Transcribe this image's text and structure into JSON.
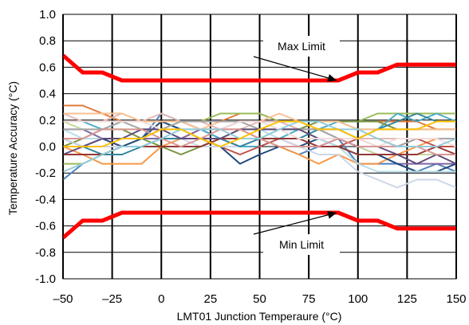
{
  "chart_data": {
    "type": "line",
    "title": "",
    "xlabel": "LMT01 Junction Temperaure (°C)",
    "ylabel": "Temperature Accuracy (°C)",
    "xlim": [
      -50,
      150
    ],
    "ylim": [
      -1.0,
      1.0
    ],
    "x_ticks": [
      -50,
      -25,
      0,
      25,
      50,
      75,
      100,
      125,
      150
    ],
    "x_tick_labels": [
      "–50",
      "–25",
      "0",
      "25",
      "50",
      "75",
      "100",
      "125",
      "150"
    ],
    "y_ticks": [
      1.0,
      0.8,
      0.6,
      0.4,
      0.2,
      0.0,
      -0.2,
      -0.4,
      -0.6,
      -0.8,
      -1.0
    ],
    "y_tick_labels": [
      "1.0",
      "0.8",
      "0.6",
      "0.4",
      "0.2",
      "0.0",
      "-0.2",
      "-0.4",
      "-0.6",
      "-0.8",
      "-1.0"
    ],
    "grid": true,
    "x": [
      -50,
      -40,
      -30,
      -20,
      -10,
      0,
      10,
      20,
      30,
      40,
      50,
      60,
      70,
      80,
      90,
      100,
      110,
      120,
      130,
      140,
      150
    ],
    "limits": [
      {
        "name": "Max Limit",
        "color": "#ff0000",
        "values": [
          0.69,
          0.56,
          0.56,
          0.5,
          0.5,
          0.5,
          0.5,
          0.5,
          0.5,
          0.5,
          0.5,
          0.5,
          0.5,
          0.5,
          0.5,
          0.56,
          0.56,
          0.62,
          0.62,
          0.62,
          0.62
        ]
      },
      {
        "name": "Min Limit",
        "color": "#ff0000",
        "values": [
          -0.69,
          -0.56,
          -0.56,
          -0.5,
          -0.5,
          -0.5,
          -0.5,
          -0.5,
          -0.5,
          -0.5,
          -0.5,
          -0.5,
          -0.5,
          -0.5,
          -0.5,
          -0.56,
          -0.56,
          -0.62,
          -0.62,
          -0.62,
          -0.62
        ]
      }
    ],
    "series": [
      {
        "color": "#e07b39",
        "values": [
          0.31,
          0.31,
          0.25,
          0.19,
          0.19,
          0.19,
          0.19,
          0.19,
          0.19,
          0.25,
          0.25,
          0.19,
          0.19,
          0.19,
          0.19,
          0.19,
          0.19,
          0.19,
          0.19,
          0.13,
          0.13
        ]
      },
      {
        "color": "#4f81bd",
        "values": [
          -0.25,
          -0.13,
          -0.06,
          0.0,
          0.06,
          0.25,
          0.19,
          0.13,
          0.06,
          0.0,
          0.06,
          0.0,
          -0.06,
          0.0,
          0.06,
          -0.13,
          -0.13,
          -0.13,
          -0.19,
          -0.13,
          -0.19
        ]
      },
      {
        "color": "#9bbb59",
        "values": [
          -0.13,
          -0.13,
          -0.06,
          0.0,
          0.06,
          0.13,
          0.19,
          0.19,
          0.25,
          0.25,
          0.25,
          0.19,
          0.19,
          0.19,
          0.19,
          0.19,
          0.25,
          0.25,
          0.25,
          0.25,
          0.25
        ]
      },
      {
        "color": "#f79646",
        "values": [
          0.0,
          -0.06,
          -0.13,
          -0.13,
          -0.13,
          0.0,
          0.06,
          0.13,
          0.13,
          0.13,
          0.06,
          0.0,
          -0.06,
          -0.13,
          -0.06,
          -0.13,
          -0.13,
          -0.06,
          0.0,
          0.06,
          0.06
        ]
      },
      {
        "color": "#8064a2",
        "values": [
          0.13,
          0.13,
          0.06,
          0.06,
          0.06,
          0.06,
          0.06,
          0.13,
          0.13,
          0.19,
          0.19,
          0.19,
          0.13,
          0.13,
          0.06,
          0.0,
          -0.06,
          -0.13,
          -0.13,
          -0.13,
          -0.13
        ]
      },
      {
        "color": "#4bacc6",
        "values": [
          0.19,
          0.19,
          0.13,
          0.19,
          0.19,
          0.19,
          0.13,
          0.13,
          0.06,
          0.0,
          0.0,
          0.06,
          0.13,
          0.13,
          0.19,
          0.13,
          0.13,
          0.25,
          0.19,
          0.25,
          0.19
        ]
      },
      {
        "color": "#c0504d",
        "values": [
          0.06,
          0.06,
          0.06,
          0.0,
          0.0,
          0.06,
          0.06,
          0.06,
          0.0,
          -0.06,
          0.0,
          0.06,
          0.0,
          0.0,
          0.0,
          0.06,
          0.06,
          0.0,
          0.06,
          0.0,
          0.0
        ]
      },
      {
        "color": "#e5b9b7",
        "values": [
          0.25,
          0.19,
          0.19,
          0.25,
          0.19,
          0.25,
          0.19,
          0.19,
          0.13,
          0.13,
          0.19,
          0.19,
          0.13,
          0.13,
          0.13,
          0.06,
          0.06,
          0.06,
          0.06,
          0.06,
          0.06
        ]
      },
      {
        "color": "#1f497d",
        "values": [
          0.06,
          0.0,
          0.06,
          0.0,
          0.06,
          0.19,
          0.13,
          0.06,
          0.0,
          -0.13,
          -0.06,
          0.0,
          0.0,
          0.06,
          0.0,
          -0.06,
          -0.06,
          -0.13,
          -0.19,
          -0.19,
          -0.13
        ]
      },
      {
        "color": "#77933c",
        "values": [
          0.0,
          0.06,
          0.13,
          0.13,
          0.06,
          0.0,
          -0.06,
          0.0,
          0.06,
          0.06,
          0.06,
          0.13,
          0.13,
          0.19,
          0.19,
          0.19,
          0.19,
          0.13,
          0.13,
          0.13,
          0.13
        ]
      },
      {
        "color": "#c4d79b",
        "values": [
          0.19,
          0.13,
          0.13,
          0.13,
          0.13,
          0.13,
          0.13,
          0.06,
          0.06,
          0.13,
          0.13,
          0.13,
          0.13,
          0.06,
          0.06,
          0.0,
          -0.06,
          -0.06,
          -0.06,
          -0.06,
          -0.13
        ]
      },
      {
        "color": "#b7dde8",
        "values": [
          0.13,
          0.06,
          0.06,
          0.06,
          0.06,
          0.13,
          0.06,
          0.06,
          0.06,
          0.13,
          0.13,
          0.06,
          0.06,
          0.06,
          0.0,
          -0.13,
          -0.19,
          -0.19,
          -0.19,
          -0.19,
          -0.19
        ]
      },
      {
        "color": "#ccd6e6",
        "values": [
          0.06,
          0.0,
          0.0,
          0.0,
          0.0,
          0.06,
          0.06,
          0.0,
          0.0,
          0.0,
          0.06,
          0.06,
          0.0,
          -0.06,
          -0.06,
          -0.19,
          -0.25,
          -0.31,
          -0.25,
          -0.25,
          -0.31
        ]
      },
      {
        "color": "#fac090",
        "values": [
          0.25,
          0.25,
          0.25,
          0.25,
          0.19,
          0.19,
          0.19,
          0.13,
          0.19,
          0.19,
          0.19,
          0.25,
          0.19,
          0.19,
          0.19,
          0.13,
          0.13,
          0.13,
          0.13,
          0.13,
          0.13
        ]
      },
      {
        "color": "#31859c",
        "values": [
          0.0,
          0.0,
          -0.06,
          -0.06,
          0.0,
          0.06,
          0.06,
          0.06,
          0.06,
          0.0,
          0.06,
          0.06,
          0.06,
          0.13,
          0.13,
          0.06,
          0.13,
          0.19,
          0.25,
          0.19,
          0.19
        ]
      },
      {
        "color": "#953735",
        "values": [
          -0.06,
          -0.06,
          -0.06,
          0.0,
          0.0,
          0.0,
          0.0,
          0.0,
          0.06,
          0.06,
          0.06,
          0.06,
          0.06,
          0.0,
          0.0,
          -0.06,
          -0.06,
          -0.06,
          -0.06,
          0.0,
          -0.06
        ]
      },
      {
        "color": "#a6a6a6",
        "values": [
          0.13,
          0.13,
          0.13,
          0.19,
          0.13,
          0.13,
          0.19,
          0.19,
          0.19,
          0.19,
          0.13,
          0.13,
          0.13,
          0.13,
          0.06,
          0.06,
          0.0,
          0.0,
          0.06,
          0.06,
          0.06
        ]
      },
      {
        "color": "#604a7b",
        "values": [
          -0.06,
          0.0,
          0.06,
          0.06,
          0.13,
          0.13,
          0.06,
          0.06,
          0.06,
          0.13,
          0.13,
          0.13,
          0.13,
          0.06,
          0.06,
          0.0,
          0.0,
          -0.06,
          -0.13,
          -0.06,
          -0.13
        ]
      },
      {
        "color": "#f2dcdb",
        "values": [
          0.19,
          0.19,
          0.19,
          0.19,
          0.19,
          0.13,
          0.13,
          0.13,
          0.13,
          0.19,
          0.19,
          0.13,
          0.06,
          0.06,
          0.06,
          0.06,
          0.0,
          0.06,
          0.06,
          0.06,
          0.0
        ]
      },
      {
        "color": "#d99694",
        "values": [
          0.06,
          0.06,
          0.13,
          0.13,
          0.13,
          0.06,
          0.0,
          0.06,
          0.13,
          0.13,
          0.06,
          0.0,
          0.0,
          0.0,
          0.06,
          0.0,
          0.0,
          0.0,
          0.0,
          -0.06,
          -0.06
        ]
      },
      {
        "color": "#92cddc",
        "values": [
          -0.19,
          -0.13,
          -0.06,
          0.0,
          0.0,
          0.06,
          0.13,
          0.13,
          0.13,
          0.06,
          0.06,
          0.13,
          0.19,
          0.19,
          0.13,
          0.13,
          0.06,
          0.0,
          0.0,
          0.0,
          0.06
        ]
      },
      {
        "color": "#ffc000",
        "values": [
          0.0,
          0.0,
          0.0,
          0.06,
          0.06,
          0.13,
          0.13,
          0.06,
          0.0,
          0.06,
          0.13,
          0.19,
          0.19,
          0.13,
          0.13,
          0.06,
          0.13,
          0.13,
          0.13,
          0.19,
          0.19
        ]
      }
    ],
    "annotations": [
      {
        "text": "Max Limit",
        "target_x": 90,
        "target_y": 0.5
      },
      {
        "text": "Min Limit",
        "target_x": 90,
        "target_y": -0.5
      }
    ]
  }
}
